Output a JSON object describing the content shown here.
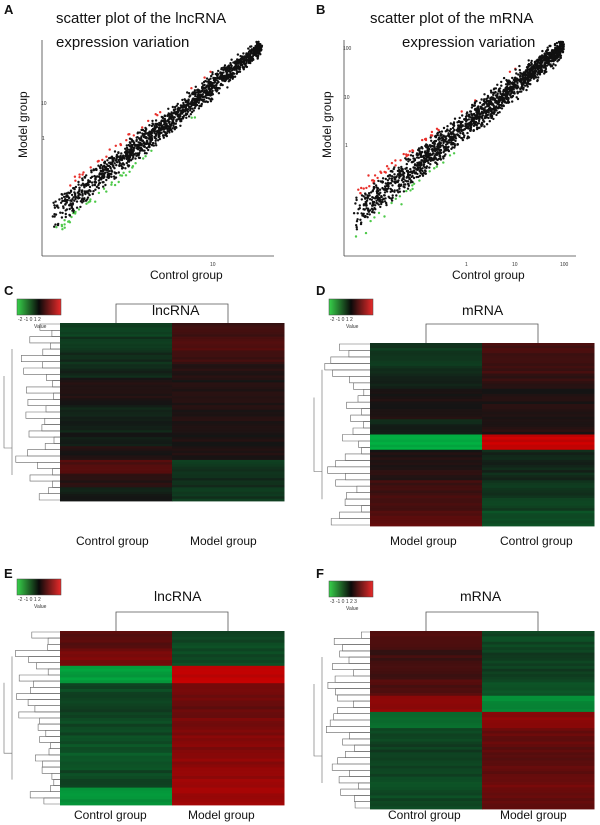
{
  "panels": {
    "A": {
      "letter": "A",
      "title_line1": "scatter plot of the lncRNA",
      "title_line2": "expression variation",
      "xlabel": "Control group",
      "ylabel": "Model group"
    },
    "B": {
      "letter": "B",
      "title_line1": "scatter plot of the mRNA",
      "title_line2": "expression variation",
      "xlabel": "Control group",
      "ylabel": "Model group"
    },
    "C": {
      "letter": "C",
      "title": "lncRNA",
      "col1": "Control group",
      "col2": "Model group"
    },
    "D": {
      "letter": "D",
      "title": "mRNA",
      "col1": "Model group",
      "col2": "Control group"
    },
    "E": {
      "letter": "E",
      "title": "lncRNA",
      "col1": "Control group",
      "col2": "Model group"
    },
    "F": {
      "letter": "F",
      "title": "mRNA",
      "col1": "Control group",
      "col2": "Model group"
    }
  },
  "legend": {
    "ticks_a": "-2  -1  0  1  2",
    "ticks_f": "-3  -1  0  1  2  3",
    "value_label": "Value"
  },
  "colors": {
    "up": "#e8302b",
    "down": "#4ec94a",
    "neutral": "#111111"
  },
  "chart_data": [
    {
      "type": "scatter",
      "panel": "A",
      "title": "scatter plot of the lncRNA expression variation",
      "xlabel": "Control group",
      "ylabel": "Model group",
      "xticks": [
        "10"
      ],
      "yticks": [
        "1",
        "10"
      ],
      "series": [
        {
          "name": "up-regulated",
          "color": "#e8302b"
        },
        {
          "name": "unchanged",
          "color": "#111111"
        },
        {
          "name": "down-regulated",
          "color": "#4ec94a"
        }
      ]
    },
    {
      "type": "scatter",
      "panel": "B",
      "title": "scatter plot of the mRNA expression variation",
      "xlabel": "Control group",
      "ylabel": "Model group",
      "xticks": [
        "1",
        "10",
        "100"
      ],
      "yticks": [
        "1",
        "10",
        "100"
      ],
      "series": [
        {
          "name": "up-regulated",
          "color": "#e8302b"
        },
        {
          "name": "unchanged",
          "color": "#111111"
        },
        {
          "name": "down-regulated",
          "color": "#4ec94a"
        }
      ]
    },
    {
      "type": "heatmap",
      "panel": "C",
      "title": "lncRNA",
      "columns": [
        "Control group",
        "Model group"
      ]
    },
    {
      "type": "heatmap",
      "panel": "D",
      "title": "mRNA",
      "columns": [
        "Model group",
        "Control group"
      ]
    },
    {
      "type": "heatmap",
      "panel": "E",
      "title": "lncRNA",
      "columns": [
        "Control group",
        "Model group"
      ]
    },
    {
      "type": "heatmap",
      "panel": "F",
      "title": "mRNA",
      "columns": [
        "Control group",
        "Model group"
      ]
    }
  ]
}
